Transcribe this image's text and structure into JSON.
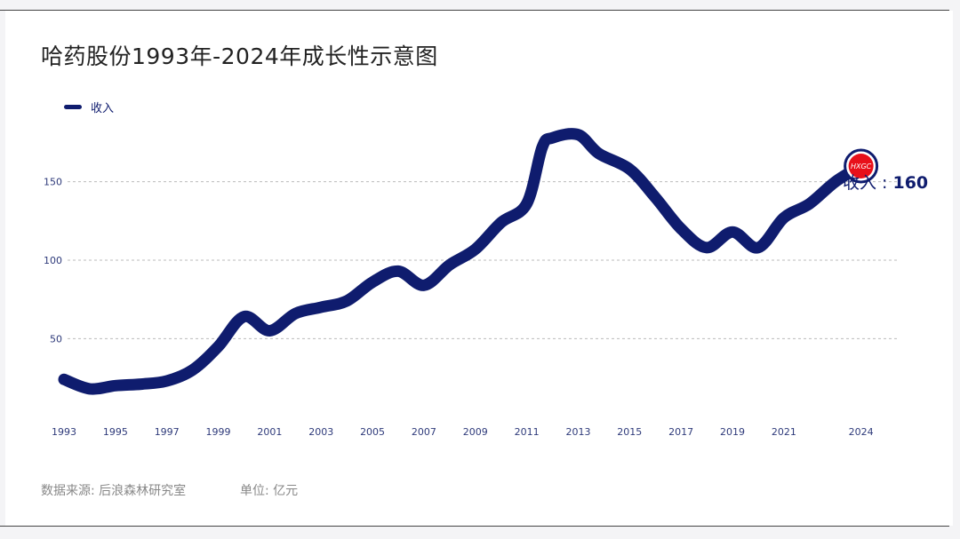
{
  "title": "哈药股份1993年-2024年成长性示意图",
  "legend": {
    "label": "收入"
  },
  "end_label": {
    "prefix": "收入 : ",
    "value": "160"
  },
  "logo_text": "HXGC",
  "footer": {
    "source": "数据来源: 后浪森林研究室",
    "unit": "单位: 亿元"
  },
  "colors": {
    "line": "#0f1c6e",
    "marker": "#e8101a",
    "grid": "#bbbbbb"
  },
  "chart_data": {
    "type": "line",
    "title": "哈药股份1993年-2024年成长性示意图",
    "xlabel": "",
    "ylabel": "",
    "ylim": [
      10,
      190
    ],
    "xlim": [
      1993,
      2025.5
    ],
    "yticks": [
      50,
      100,
      150
    ],
    "xticks": [
      "1993",
      "1995",
      "1997",
      "1999",
      "2001",
      "2003",
      "2005",
      "2007",
      "2009",
      "2011",
      "2013",
      "2015",
      "2017",
      "2019",
      "2021",
      "2024"
    ],
    "grid": "horizontal dashed",
    "legend_position": "top-left",
    "series": [
      {
        "name": "收入",
        "x": [
          1993,
          1994,
          1995,
          1996,
          1997,
          1998,
          1999,
          2000,
          2001,
          2002,
          2003,
          2004,
          2005,
          2006,
          2007,
          2008,
          2009,
          2010,
          2011,
          2011.6,
          2012,
          2013,
          2013.8,
          2015,
          2016,
          2017,
          2018,
          2019,
          2020,
          2021,
          2022,
          2023,
          2024
        ],
        "values": [
          24,
          18,
          20,
          21,
          23,
          30,
          45,
          64,
          55,
          66,
          70,
          74,
          86,
          93,
          84,
          97,
          107,
          124,
          136,
          172,
          178,
          180,
          168,
          158,
          140,
          120,
          108,
          118,
          108,
          127,
          136,
          150,
          160
        ]
      }
    ]
  }
}
